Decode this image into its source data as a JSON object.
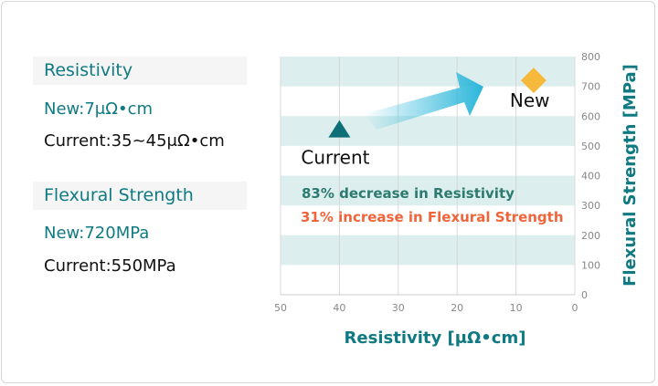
{
  "left_panel": {
    "resistivity": {
      "heading": "Resistivity",
      "new": "New:7μΩ•cm",
      "current": "Current:35~45μΩ•cm"
    },
    "flexural": {
      "heading": "Flexural Strength",
      "new": "New:720MPa",
      "current": "Current:550MPa"
    }
  },
  "chart_data": {
    "type": "scatter",
    "xlabel": "Resistivity [μΩ•cm]",
    "ylabel": "Flexural Strength [MPa]",
    "xlim": [
      50,
      0
    ],
    "ylim": [
      0,
      800
    ],
    "x_reversed": true,
    "y_axis_position": "right",
    "x_ticks": [
      "50",
      "40",
      "30",
      "20",
      "10",
      "0"
    ],
    "y_ticks": [
      "0",
      "100",
      "200",
      "300",
      "400",
      "500",
      "600",
      "700",
      "800"
    ],
    "grid": true,
    "shaded_bands": [
      [
        100,
        200
      ],
      [
        300,
        400
      ],
      [
        500,
        600
      ],
      [
        700,
        800
      ]
    ],
    "points": [
      {
        "label": "Current",
        "x": 40,
        "y": 550,
        "marker": "triangle",
        "color": "#0e6f78"
      },
      {
        "label": "New",
        "x": 7,
        "y": 720,
        "marker": "diamond",
        "color": "#f6b93b"
      }
    ],
    "annotations": [
      {
        "text": "83% decrease in Resistivity",
        "color": "#2d7a70"
      },
      {
        "text": "31% increase in Flexural Strength",
        "color": "#f0643a"
      }
    ],
    "colors": {
      "band": "#dcefee",
      "axis_label": "#0f7a82",
      "arrow": "#2bb6da"
    }
  }
}
